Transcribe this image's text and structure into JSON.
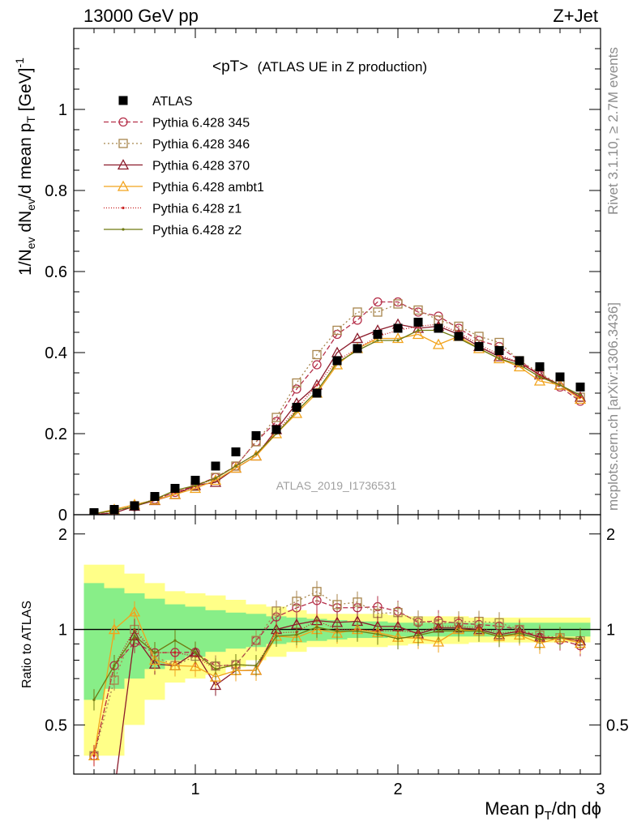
{
  "header": {
    "left_title": "13000 GeV pp",
    "right_title": "Z+Jet"
  },
  "side_labels": {
    "top": "Rivet 3.1.10, ≥ 2.7M events",
    "bottom": "mcplots.cern.ch [arXiv:1306.3436]"
  },
  "chart_data": {
    "type": "line",
    "title_main": "<pT>",
    "title_sub": "(ATLAS UE in Z production)",
    "watermark": "ATLAS_2019_I1736531",
    "ylabel_main": "1/N",
    "ylabel_sub_ev": "ev",
    "ylabel_mid": " dN",
    "ylabel_sub_ev2": "ev",
    "ylabel_tail": "/d mean p",
    "ylabel_sub_T": "T",
    "ylabel_unit": " [GeV]",
    "ylabel_exp": "-1",
    "ratio_ylabel": "Ratio to ATLAS",
    "xlabel_main": "Mean p",
    "xlabel_sub": "T",
    "xlabel_tail": "/dη dϕ",
    "xlim": [
      0.4,
      3.0
    ],
    "ylim": [
      0,
      1.2
    ],
    "ratio_ylim": [
      0.35,
      2.3
    ],
    "xticks": [
      "1",
      "2",
      "3"
    ],
    "yticks": [
      "0",
      "0.2",
      "0.4",
      "0.6",
      "0.8",
      "1"
    ],
    "ratio_yticks": [
      "0.5",
      "1",
      "2"
    ],
    "x": [
      0.5,
      0.6,
      0.7,
      0.8,
      0.9,
      1.0,
      1.1,
      1.2,
      1.3,
      1.4,
      1.5,
      1.6,
      1.7,
      1.8,
      1.9,
      2.0,
      2.1,
      2.2,
      2.3,
      2.4,
      2.5,
      2.6,
      2.7,
      2.8,
      2.9
    ],
    "data": {
      "name": "ATLAS",
      "values": [
        0.005,
        0.013,
        0.022,
        0.045,
        0.065,
        0.085,
        0.12,
        0.155,
        0.195,
        0.21,
        0.265,
        0.3,
        0.38,
        0.41,
        0.445,
        0.46,
        0.475,
        0.46,
        0.44,
        0.415,
        0.405,
        0.38,
        0.365,
        0.34,
        0.315
      ],
      "band_outer": [
        0.6,
        0.6,
        0.5,
        0.4,
        0.32,
        0.3,
        0.28,
        0.24,
        0.2,
        0.18,
        0.15,
        0.12,
        0.12,
        0.12,
        0.12,
        0.11,
        0.1,
        0.1,
        0.1,
        0.09,
        0.09,
        0.09,
        0.09,
        0.09,
        0.09
      ],
      "band_inner": [
        0.4,
        0.35,
        0.3,
        0.25,
        0.2,
        0.18,
        0.15,
        0.13,
        0.12,
        0.1,
        0.09,
        0.08,
        0.07,
        0.06,
        0.06,
        0.05,
        0.05,
        0.05,
        0.05,
        0.05,
        0.05,
        0.05,
        0.05,
        0.05,
        0.05
      ]
    },
    "series": [
      {
        "name": "Pythia 6.428 345",
        "color": "#b5304a",
        "dash": "6,3",
        "marker": "circle",
        "values": [
          0.002,
          0.01,
          0.02,
          0.038,
          0.055,
          0.072,
          0.092,
          0.12,
          0.18,
          0.23,
          0.31,
          0.37,
          0.445,
          0.48,
          0.525,
          0.525,
          0.5,
          0.49,
          0.46,
          0.43,
          0.415,
          0.38,
          0.345,
          0.315,
          0.28
        ]
      },
      {
        "name": "Pythia 6.428 346",
        "color": "#a8864d",
        "dash": "2,3",
        "marker": "square",
        "values": [
          0.002,
          0.009,
          0.022,
          0.037,
          0.05,
          0.07,
          0.092,
          0.12,
          0.18,
          0.24,
          0.325,
          0.395,
          0.455,
          0.5,
          0.5,
          0.52,
          0.505,
          0.48,
          0.465,
          0.44,
          0.425,
          0.38,
          0.35,
          0.32,
          0.29
        ]
      },
      {
        "name": "Pythia 6.428 370",
        "color": "#8b1a2a",
        "dash": "",
        "marker": "triangle",
        "values": [
          0.001,
          0.004,
          0.021,
          0.035,
          0.05,
          0.072,
          0.08,
          0.115,
          0.145,
          0.21,
          0.275,
          0.32,
          0.4,
          0.435,
          0.455,
          0.47,
          0.46,
          0.465,
          0.445,
          0.415,
          0.39,
          0.375,
          0.345,
          0.32,
          0.29
        ]
      },
      {
        "name": "Pythia 6.428 ambt1",
        "color": "#f2a31c",
        "dash": "",
        "marker": "triangle-open",
        "values": [
          0.002,
          0.013,
          0.025,
          0.036,
          0.05,
          0.065,
          0.085,
          0.115,
          0.145,
          0.2,
          0.25,
          0.3,
          0.37,
          0.41,
          0.435,
          0.435,
          0.445,
          0.42,
          0.44,
          0.41,
          0.385,
          0.365,
          0.33,
          0.32,
          0.285
        ]
      },
      {
        "name": "Pythia 6.428 z1",
        "color": "#c81e1e",
        "dash": "1,2",
        "marker": "dot",
        "values": [
          0.002,
          0.01,
          0.022,
          0.038,
          0.055,
          0.07,
          0.09,
          0.12,
          0.15,
          0.205,
          0.26,
          0.32,
          0.38,
          0.41,
          0.44,
          0.455,
          0.465,
          0.47,
          0.45,
          0.42,
          0.395,
          0.375,
          0.345,
          0.32,
          0.29
        ]
      },
      {
        "name": "Pythia 6.428 z2",
        "color": "#6f7a11",
        "dash": "",
        "marker": "dot",
        "values": [
          0.003,
          0.01,
          0.021,
          0.038,
          0.06,
          0.072,
          0.09,
          0.12,
          0.15,
          0.2,
          0.255,
          0.305,
          0.375,
          0.405,
          0.43,
          0.43,
          0.455,
          0.455,
          0.435,
          0.41,
          0.385,
          0.37,
          0.34,
          0.32,
          0.295
        ]
      }
    ]
  }
}
